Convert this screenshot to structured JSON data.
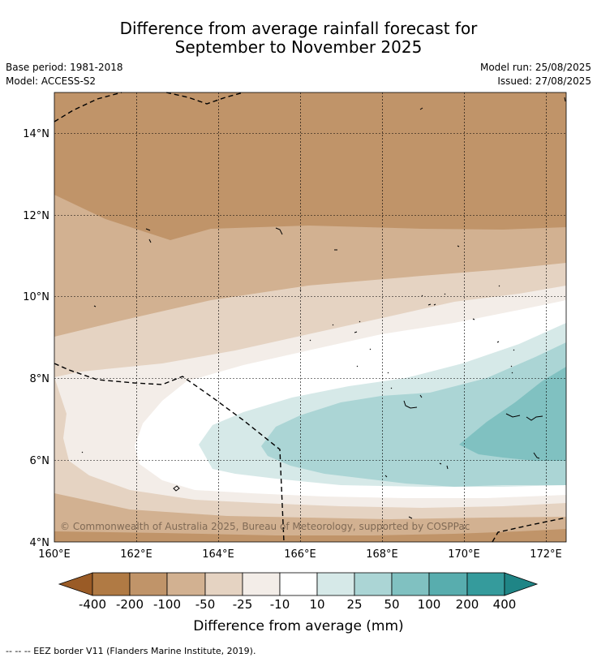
{
  "title_line1": "Difference from average rainfall forecast for",
  "title_line2": "September to November 2025",
  "base_period": "Base period: 1981-2018",
  "model": "Model: ACCESS-S2",
  "model_run": "Model run: 25/08/2025",
  "issued": "Issued: 27/08/2025",
  "copyright": "© Commonwealth of Australia 2025, Bureau of Meteorology, supported by COSPPac",
  "lat_labels": [
    "14°N",
    "12°N",
    "10°N",
    "8°N",
    "6°N",
    "4°N"
  ],
  "lon_labels": [
    "160°E",
    "162°E",
    "164°E",
    "166°E",
    "168°E",
    "170°E",
    "172°E"
  ],
  "colorbar": {
    "ticks": [
      "-400",
      "-200",
      "-100",
      "-50",
      "-25",
      "-10",
      "10",
      "25",
      "50",
      "100",
      "200",
      "400"
    ],
    "label": "Difference from average (mm)",
    "colors": {
      "lt_400": "#9a5b26",
      "n400_200": "#b07a44",
      "n200_100": "#c09469",
      "n100_50": "#d2b191",
      "n50_25": "#e5d3c2",
      "n25_10": "#f3ede8",
      "n10_10": "#ffffff",
      "p10_25": "#d6e9e8",
      "p25_50": "#abd5d5",
      "p50_100": "#80c1c1",
      "p100_200": "#58adae",
      "p200_400": "#359b9c",
      "gt_400": "#1f8586"
    }
  },
  "eez_note": "-- -- -- EEZ border V11 (Flanders Marine Institute, 2019)."
}
